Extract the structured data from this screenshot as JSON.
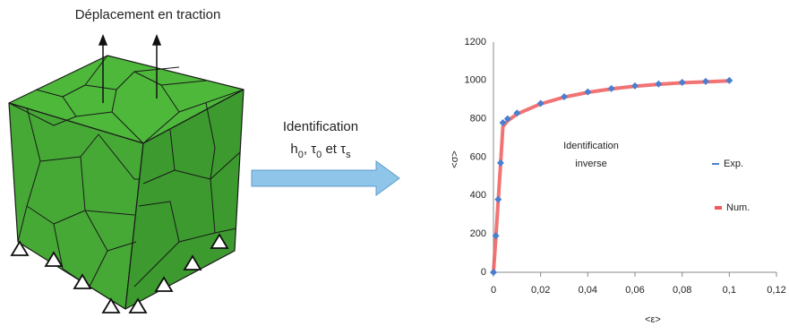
{
  "diagram": {
    "load_label": "Déplacement en traction",
    "arrow_label": "Identification",
    "arrow_params": [
      "h",
      "0",
      ", τ",
      "0",
      " et τ",
      "s"
    ]
  },
  "chart_data": {
    "type": "line",
    "x": [
      0,
      0.001,
      0.002,
      0.003,
      0.004,
      0.006,
      0.01,
      0.02,
      0.03,
      0.04,
      0.05,
      0.06,
      0.07,
      0.08,
      0.09,
      0.1
    ],
    "series": [
      {
        "name": "Exp.",
        "color": "#4a7fd0",
        "values": [
          0,
          190,
          380,
          570,
          780,
          800,
          830,
          880,
          915,
          940,
          958,
          972,
          982,
          990,
          995,
          1000
        ]
      },
      {
        "name": "Num.",
        "color": "#f05a5a",
        "values": [
          0,
          180,
          370,
          560,
          760,
          790,
          825,
          878,
          913,
          938,
          956,
          970,
          980,
          988,
          993,
          998
        ]
      }
    ],
    "xlabel": "<ε>",
    "ylabel": "<σ>",
    "annotation": [
      "Identification",
      "inverse"
    ],
    "xlim": [
      0,
      0.12
    ],
    "ylim": [
      0,
      1200
    ],
    "xticks": [
      0,
      {
        "value": 0.02,
        "label": "0,02"
      },
      {
        "value": 0.04,
        "label": "0,04"
      },
      {
        "value": 0.06,
        "label": "0,06"
      },
      {
        "value": 0.08,
        "label": "0,08"
      },
      {
        "value": 0.1,
        "label": "0,1"
      },
      {
        "value": 0.12,
        "label": "0,12"
      }
    ],
    "yticks": [
      0,
      200,
      400,
      600,
      800,
      1000,
      1200
    ]
  }
}
